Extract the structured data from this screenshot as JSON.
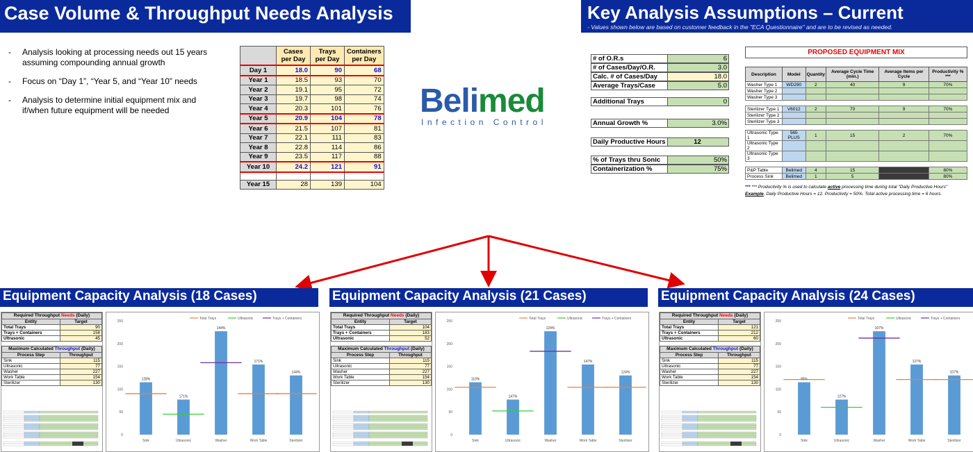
{
  "left_header": {
    "title": "Case Volume & Throughput Needs Analysis"
  },
  "right_header": {
    "title": "Key Analysis Assumptions – Current",
    "subtitle": "- Values shown below are based on customer feedback in the \"ECA Questionnaire\" and are to be revised as needed."
  },
  "bullets": [
    "Analysis looking at processing needs out 15 years assuming compounding annual growth",
    "Focus on “Day 1”, “Year 5, and “Year 10” needs",
    "Analysis to determine initial equipment mix and if/when future equipment will be needed"
  ],
  "year_table": {
    "headers": [
      "Cases per Day",
      "Trays per Day",
      "Containers per Day"
    ],
    "rows": [
      {
        "label": "Day 1",
        "cases": "18.0",
        "trays": "90",
        "containers": "68",
        "highlight": true
      },
      {
        "label": "Year 1",
        "cases": "18.5",
        "trays": "93",
        "containers": "70"
      },
      {
        "label": "Year 2",
        "cases": "19.1",
        "trays": "95",
        "containers": "72"
      },
      {
        "label": "Year 3",
        "cases": "19.7",
        "trays": "98",
        "containers": "74"
      },
      {
        "label": "Year 4",
        "cases": "20.3",
        "trays": "101",
        "containers": "76"
      },
      {
        "label": "Year 5",
        "cases": "20.9",
        "trays": "104",
        "containers": "78",
        "highlight": true
      },
      {
        "label": "Year 6",
        "cases": "21.5",
        "trays": "107",
        "containers": "81"
      },
      {
        "label": "Year 7",
        "cases": "22.1",
        "trays": "111",
        "containers": "83"
      },
      {
        "label": "Year 8",
        "cases": "22.8",
        "trays": "114",
        "containers": "86"
      },
      {
        "label": "Year 9",
        "cases": "23.5",
        "trays": "117",
        "containers": "88"
      },
      {
        "label": "Year 10",
        "cases": "24.2",
        "trays": "121",
        "containers": "91",
        "highlight": true
      }
    ],
    "last_row": {
      "label": "Year 15",
      "cases": "28",
      "trays": "139",
      "containers": "104"
    }
  },
  "logo": {
    "word_a": "Beli",
    "word_b": "med",
    "tagline": "Infection Control"
  },
  "assumptions": {
    "group1": [
      {
        "k": "# of O.R.s",
        "v": "6"
      },
      {
        "k": "# of Cases/Day/O.R.",
        "v": "3.0"
      },
      {
        "k": "Calc. # of Cases/Day",
        "v": "18.0",
        "yellow": true
      },
      {
        "k": "Average Trays/Case",
        "v": "5.0"
      }
    ],
    "additional_trays": {
      "k": "Additional Trays",
      "v": "0"
    },
    "annual_growth": {
      "k": "Annual Growth %",
      "v": "3.0%"
    },
    "daily_hours": {
      "k": "Daily Productive Hours",
      "v": "12"
    },
    "group2": [
      {
        "k": "% of Trays thru Sonic",
        "v": "50%"
      },
      {
        "k": "Containerization %",
        "v": "75%"
      }
    ]
  },
  "equipment_mix": {
    "title": "PROPOSED EQUIPMENT MIX",
    "headers": [
      "Description",
      "Model",
      "Quantity",
      "Average Cycle Time (min.)",
      "Average Items per Cycle",
      "Productivity % ***"
    ],
    "groups": [
      [
        {
          "d": "Washer Type 1",
          "m": "WD290",
          "q": "2",
          "c": "40",
          "i": "9",
          "p": "70%"
        },
        {
          "d": "Washer Type 2",
          "m": "",
          "q": "",
          "c": "",
          "i": "",
          "p": ""
        },
        {
          "d": "Washer Type 3",
          "m": "",
          "q": "",
          "c": "",
          "i": "",
          "p": ""
        }
      ],
      [
        {
          "d": "Sterilizer Type 1",
          "m": "V6012",
          "q": "2",
          "c": "70",
          "i": "9",
          "p": "70%"
        },
        {
          "d": "Sterilizer Type 2",
          "m": "",
          "q": "",
          "c": "",
          "i": "",
          "p": ""
        },
        {
          "d": "Sterilizer Type 3",
          "m": "",
          "q": "",
          "c": "",
          "i": "",
          "p": ""
        }
      ],
      [
        {
          "d": "Ultrasonic Type 1",
          "m": "565 PLUS",
          "q": "1",
          "c": "15",
          "i": "2",
          "p": "70%"
        },
        {
          "d": "Ultrasonic Type 2",
          "m": "",
          "q": "",
          "c": "",
          "i": "",
          "p": ""
        },
        {
          "d": "Ultrasonic Type 3",
          "m": "",
          "q": "",
          "c": "",
          "i": "",
          "p": ""
        }
      ],
      [
        {
          "d": "P&P Table",
          "m": "Belimed",
          "q": "4",
          "c": "15",
          "i": "",
          "p": "80%",
          "dark": true
        },
        {
          "d": "Process Sink",
          "m": "Belimed",
          "q": "1",
          "c": "5",
          "i": "",
          "p": "80%",
          "dark": true
        }
      ]
    ],
    "note1_pre": "*** Productivity % is used to calculate",
    "note1_em": "active",
    "note1_post": "processing time during total \"Daily Productive Hours\"",
    "note2_ex": "Example",
    "note2": ". Daily Productive Hours = 12. Productivity = 50%. Total active processing time = 6 hours."
  },
  "sections": [
    {
      "title": "Equipment Capacity Analysis (18 Cases)",
      "needs_title_a": "Required Throughput",
      "needs_title_b": "Needs",
      "needs_title_c": "(Daily)",
      "needs_headers": [
        "Entity",
        "Target"
      ],
      "needs": [
        [
          "Total Trays",
          "90"
        ],
        [
          "Trays + Containers",
          "158"
        ],
        [
          "Ultrasonic",
          "45"
        ]
      ],
      "tp_title_a": "Maximum Calculated",
      "tp_title_b": "Throughput",
      "tp_title_c": "(Daily)",
      "tp_headers": [
        "Process Step",
        "Throughput"
      ],
      "throughput": [
        [
          "Sink",
          "115"
        ],
        [
          "Ultrasonic",
          "77"
        ],
        [
          "Washer",
          "227"
        ],
        [
          "Work Table",
          "154"
        ],
        [
          "Sterilizer",
          "130"
        ]
      ]
    },
    {
      "title": "Equipment Capacity Analysis (21 Cases)",
      "needs_title_a": "Required Throughput",
      "needs_title_b": "Needs",
      "needs_title_c": "(Daily)",
      "needs_headers": [
        "Entity",
        "Target"
      ],
      "needs": [
        [
          "Total Trays",
          "104"
        ],
        [
          "Trays + Containers",
          "183"
        ],
        [
          "Ultrasonic",
          "52"
        ]
      ],
      "tp_title_a": "Maximum Calculated",
      "tp_title_b": "Throughput",
      "tp_title_c": "(Daily)",
      "tp_headers": [
        "Process Step",
        "Throughput"
      ],
      "throughput": [
        [
          "Sink",
          "115"
        ],
        [
          "Ultrasonic",
          "77"
        ],
        [
          "Washer",
          "227"
        ],
        [
          "Work Table",
          "154"
        ],
        [
          "Sterilizer",
          "130"
        ]
      ]
    },
    {
      "title": "Equipment Capacity Analysis (24 Cases)",
      "needs_title_a": "Required Throughput",
      "needs_title_b": "Needs",
      "needs_title_c": "(Daily)",
      "needs_headers": [
        "Entity",
        "Target"
      ],
      "needs": [
        [
          "Total Trays",
          "121"
        ],
        [
          "Trays + Containers",
          "212"
        ],
        [
          "Ultrasonic",
          "60"
        ]
      ],
      "tp_title_a": "Maximum Calculated",
      "tp_title_b": "Throughput",
      "tp_title_c": "(Daily)",
      "tp_headers": [
        "Process Step",
        "Throughput"
      ],
      "throughput": [
        [
          "Sink",
          "115"
        ],
        [
          "Ultrasonic",
          "77"
        ],
        [
          "Washer",
          "227"
        ],
        [
          "Work Table",
          "154"
        ],
        [
          "Sterilizer",
          "130"
        ]
      ]
    }
  ],
  "chart_data": [
    {
      "type": "bar",
      "categories": [
        "Sink",
        "Ultrasonic",
        "Washer",
        "Work Table",
        "Sterilizer"
      ],
      "values": [
        115,
        77,
        227,
        154,
        130
      ],
      "data_labels": [
        "128%",
        "171%",
        "144%",
        "171%",
        "144%"
      ],
      "target_lines": [
        {
          "name": "Total Trays",
          "color": "#f07e3a",
          "segments": [
            [
              0,
              90
            ],
            [
              3,
              90
            ],
            [
              4,
              90
            ]
          ]
        },
        {
          "name": "Ultrasonic",
          "color": "#2fd12f",
          "segments": [
            [
              1,
              45
            ]
          ]
        },
        {
          "name": "Trays + Containers",
          "color": "#7030a0",
          "segments": [
            [
              2,
              158
            ]
          ]
        }
      ],
      "yticks": [
        0,
        50,
        100,
        150,
        200,
        250
      ],
      "ylim": [
        0,
        250
      ],
      "legend": [
        "Total Trays",
        "Ultrasonic",
        "Trays + Containers"
      ],
      "legend_placement": "top-right"
    },
    {
      "type": "bar",
      "categories": [
        "Sink",
        "Ultrasonic",
        "Washer",
        "Work Table",
        "Sterilizer"
      ],
      "values": [
        115,
        77,
        227,
        154,
        130
      ],
      "data_labels": [
        "110%",
        "147%",
        "124%",
        "147%",
        "124%"
      ],
      "target_lines": [
        {
          "name": "Total Trays",
          "color": "#f07e3a",
          "segments": [
            [
              0,
              104
            ],
            [
              3,
              104
            ],
            [
              4,
              104
            ]
          ]
        },
        {
          "name": "Ultrasonic",
          "color": "#2fd12f",
          "segments": [
            [
              1,
              52
            ]
          ]
        },
        {
          "name": "Trays + Containers",
          "color": "#7030a0",
          "segments": [
            [
              2,
              183
            ]
          ]
        }
      ],
      "yticks": [
        0,
        50,
        100,
        150,
        200,
        250
      ],
      "ylim": [
        0,
        250
      ],
      "legend": [
        "Total Trays",
        "Ultrasonic",
        "Trays + Containers"
      ],
      "legend_placement": "top-right"
    },
    {
      "type": "bar",
      "categories": [
        "Sink",
        "Ultrasonic",
        "Washer",
        "Work Table",
        "Sterilizer"
      ],
      "values": [
        115,
        77,
        227,
        154,
        130
      ],
      "data_labels": [
        "95%",
        "127%",
        "107%",
        "127%",
        "107%"
      ],
      "target_lines": [
        {
          "name": "Total Trays",
          "color": "#f07e3a",
          "segments": [
            [
              0,
              121
            ],
            [
              3,
              121
            ],
            [
              4,
              121
            ]
          ]
        },
        {
          "name": "Ultrasonic",
          "color": "#2fd12f",
          "segments": [
            [
              1,
              60
            ]
          ]
        },
        {
          "name": "Trays + Containers",
          "color": "#7030a0",
          "segments": [
            [
              2,
              212
            ]
          ]
        }
      ],
      "yticks": [
        0,
        50,
        100,
        150,
        200,
        250
      ],
      "ylim": [
        0,
        250
      ],
      "legend": [
        "Total Trays",
        "Ultrasonic",
        "Trays + Containers"
      ],
      "legend_placement": "top-right"
    }
  ],
  "colors": {
    "banner": "#0a2a9c",
    "bar": "#5b9bd5",
    "highlight": "#e00000",
    "arrow": "#e00000"
  }
}
